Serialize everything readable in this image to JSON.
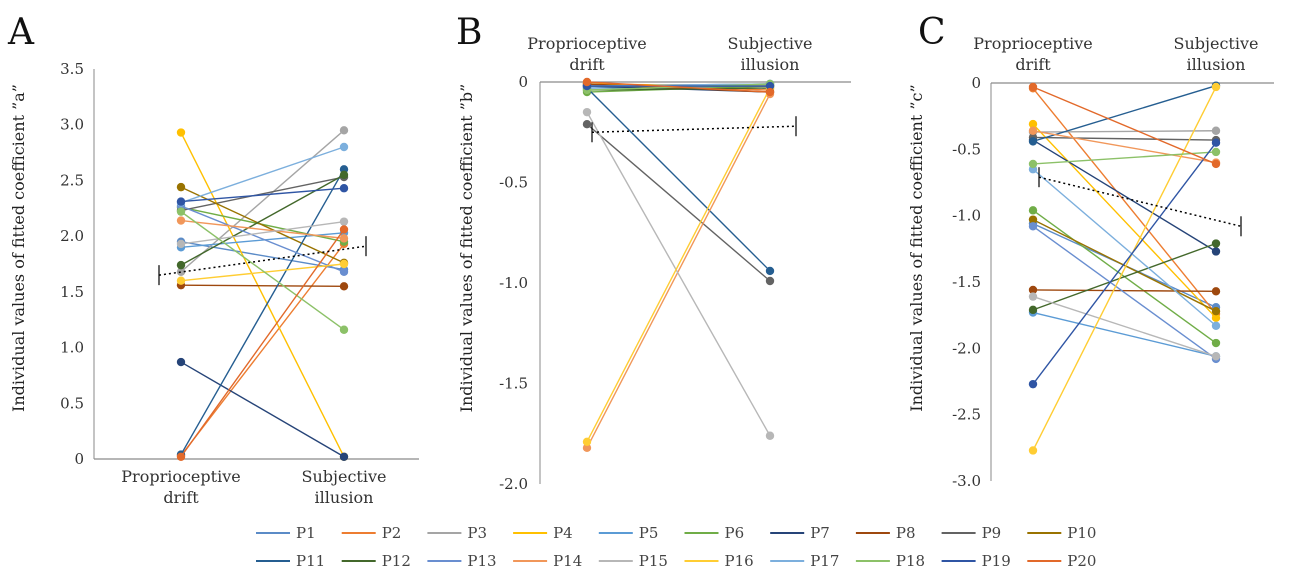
{
  "legend": [
    "P1",
    "P2",
    "P3",
    "P4",
    "P5",
    "P6",
    "P7",
    "P8",
    "P9",
    "P10",
    "P11",
    "P12",
    "P13",
    "P14",
    "P15",
    "P16",
    "P17",
    "P18",
    "P19",
    "P20"
  ],
  "colors": [
    "#5B8BC7",
    "#ED7D31",
    "#A5A5A5",
    "#FFC000",
    "#5B9BD5",
    "#70AD47",
    "#264478",
    "#9E480E",
    "#636363",
    "#997300",
    "#255E91",
    "#43682B",
    "#698ED0",
    "#F1975A",
    "#B7B7B7",
    "#FFCD33",
    "#7CAFDD",
    "#8CC168",
    "#2F55A4",
    "#E2692A"
  ],
  "chart_data": [
    {
      "type": "line",
      "panel": "A",
      "categories": [
        "Proprioceptive drift",
        "Subjective illusion"
      ],
      "ylabel": "Individual values of fitted coefficient ”a”",
      "ylim": [
        0,
        3.5
      ],
      "yticks": [
        "0",
        "0.5",
        "1.0",
        "1.5",
        "2.0",
        "2.5",
        "3.0",
        "3.5"
      ],
      "axis_position": "bottom",
      "trend": [
        1.65,
        1.91
      ],
      "series": [
        {
          "name": "P1",
          "values": [
            1.95,
            1.7
          ]
        },
        {
          "name": "P2",
          "values": [
            0.03,
            1.93
          ]
        },
        {
          "name": "P3",
          "values": [
            1.68,
            2.95
          ]
        },
        {
          "name": "P4",
          "values": [
            2.93,
            0.02
          ]
        },
        {
          "name": "P5",
          "values": [
            1.9,
            2.03
          ]
        },
        {
          "name": "P6",
          "values": [
            2.26,
            1.95
          ]
        },
        {
          "name": "P7",
          "values": [
            0.87,
            0.02
          ]
        },
        {
          "name": "P8",
          "values": [
            1.56,
            1.55
          ]
        },
        {
          "name": "P9",
          "values": [
            2.23,
            2.53
          ]
        },
        {
          "name": "P10",
          "values": [
            2.44,
            1.76
          ]
        },
        {
          "name": "P11",
          "values": [
            0.04,
            2.6
          ]
        },
        {
          "name": "P12",
          "values": [
            1.74,
            2.55
          ]
        },
        {
          "name": "P13",
          "values": [
            2.27,
            1.68
          ]
        },
        {
          "name": "P14",
          "values": [
            2.14,
            1.98
          ]
        },
        {
          "name": "P15",
          "values": [
            1.93,
            2.13
          ]
        },
        {
          "name": "P16",
          "values": [
            1.6,
            1.75
          ]
        },
        {
          "name": "P17",
          "values": [
            2.3,
            2.8
          ]
        },
        {
          "name": "P18",
          "values": [
            2.22,
            1.16
          ]
        },
        {
          "name": "P19",
          "values": [
            2.31,
            2.43
          ]
        },
        {
          "name": "P20",
          "values": [
            0.02,
            2.06
          ]
        }
      ]
    },
    {
      "type": "line",
      "panel": "B",
      "categories": [
        "Proprioceptive drift",
        "Subjective illusion"
      ],
      "ylabel": "Individual values of fitted coefficient ”b”",
      "ylim": [
        -2.0,
        0
      ],
      "yticks": [
        "0",
        "-0.5",
        "-1.0",
        "-1.5",
        "-2.0"
      ],
      "axis_position": "top",
      "trend": [
        -0.25,
        -0.22
      ],
      "series": [
        {
          "name": "P1",
          "values": [
            -0.02,
            -0.01
          ]
        },
        {
          "name": "P2",
          "values": [
            -0.01,
            -0.04
          ]
        },
        {
          "name": "P3",
          "values": [
            -0.02,
            -0.01
          ]
        },
        {
          "name": "P4",
          "values": [
            -0.01,
            -0.02
          ]
        },
        {
          "name": "P5",
          "values": [
            -0.03,
            -0.02
          ]
        },
        {
          "name": "P6",
          "values": [
            -0.05,
            -0.02
          ]
        },
        {
          "name": "P7",
          "values": [
            -0.02,
            -0.05
          ]
        },
        {
          "name": "P8",
          "values": [
            -0.01,
            -0.05
          ]
        },
        {
          "name": "P9",
          "values": [
            -0.21,
            -0.99
          ]
        },
        {
          "name": "P10",
          "values": [
            -0.02,
            -0.02
          ]
        },
        {
          "name": "P11",
          "values": [
            -0.03,
            -0.94
          ]
        },
        {
          "name": "P12",
          "values": [
            -0.04,
            -0.03
          ]
        },
        {
          "name": "P13",
          "values": [
            -0.02,
            -0.02
          ]
        },
        {
          "name": "P14",
          "values": [
            -1.82,
            -0.06
          ]
        },
        {
          "name": "P15",
          "values": [
            -0.15,
            -1.76
          ]
        },
        {
          "name": "P16",
          "values": [
            -1.79,
            -0.03
          ]
        },
        {
          "name": "P17",
          "values": [
            -0.02,
            -0.01
          ]
        },
        {
          "name": "P18",
          "values": [
            -0.04,
            -0.01
          ]
        },
        {
          "name": "P19",
          "values": [
            -0.02,
            -0.02
          ]
        },
        {
          "name": "P20",
          "values": [
            0.0,
            -0.05
          ]
        }
      ]
    },
    {
      "type": "line",
      "panel": "C",
      "categories": [
        "Proprioceptive drift",
        "Subjective illusion"
      ],
      "ylabel": "Individual values of fitted coefficient ”c”",
      "ylim": [
        -3.0,
        0
      ],
      "yticks": [
        "0",
        "-0.5",
        "-1.0",
        "-1.5",
        "-2.0",
        "-2.5",
        "-3.0"
      ],
      "axis_position": "top",
      "trend": [
        -0.71,
        -1.08
      ],
      "series": [
        {
          "name": "P1",
          "values": [
            -1.06,
            -1.69
          ]
        },
        {
          "name": "P2",
          "values": [
            -0.04,
            -1.74
          ]
        },
        {
          "name": "P3",
          "values": [
            -0.37,
            -0.36
          ]
        },
        {
          "name": "P4",
          "values": [
            -0.31,
            -1.77
          ]
        },
        {
          "name": "P5",
          "values": [
            -1.73,
            -2.06
          ]
        },
        {
          "name": "P6",
          "values": [
            -0.96,
            -1.96
          ]
        },
        {
          "name": "P7",
          "values": [
            -0.43,
            -1.27
          ]
        },
        {
          "name": "P8",
          "values": [
            -1.56,
            -1.57
          ]
        },
        {
          "name": "P9",
          "values": [
            -0.41,
            -0.43
          ]
        },
        {
          "name": "P10",
          "values": [
            -1.03,
            -1.72
          ]
        },
        {
          "name": "P11",
          "values": [
            -0.44,
            -0.02
          ]
        },
        {
          "name": "P12",
          "values": [
            -1.71,
            -1.21
          ]
        },
        {
          "name": "P13",
          "values": [
            -1.08,
            -2.08
          ]
        },
        {
          "name": "P14",
          "values": [
            -0.36,
            -0.6
          ]
        },
        {
          "name": "P15",
          "values": [
            -1.61,
            -2.06
          ]
        },
        {
          "name": "P16",
          "values": [
            -2.77,
            -0.03
          ]
        },
        {
          "name": "P17",
          "values": [
            -0.65,
            -1.83
          ]
        },
        {
          "name": "P18",
          "values": [
            -0.61,
            -0.52
          ]
        },
        {
          "name": "P19",
          "values": [
            -2.27,
            -0.45
          ]
        },
        {
          "name": "P20",
          "values": [
            -0.03,
            -0.61
          ]
        }
      ]
    }
  ]
}
